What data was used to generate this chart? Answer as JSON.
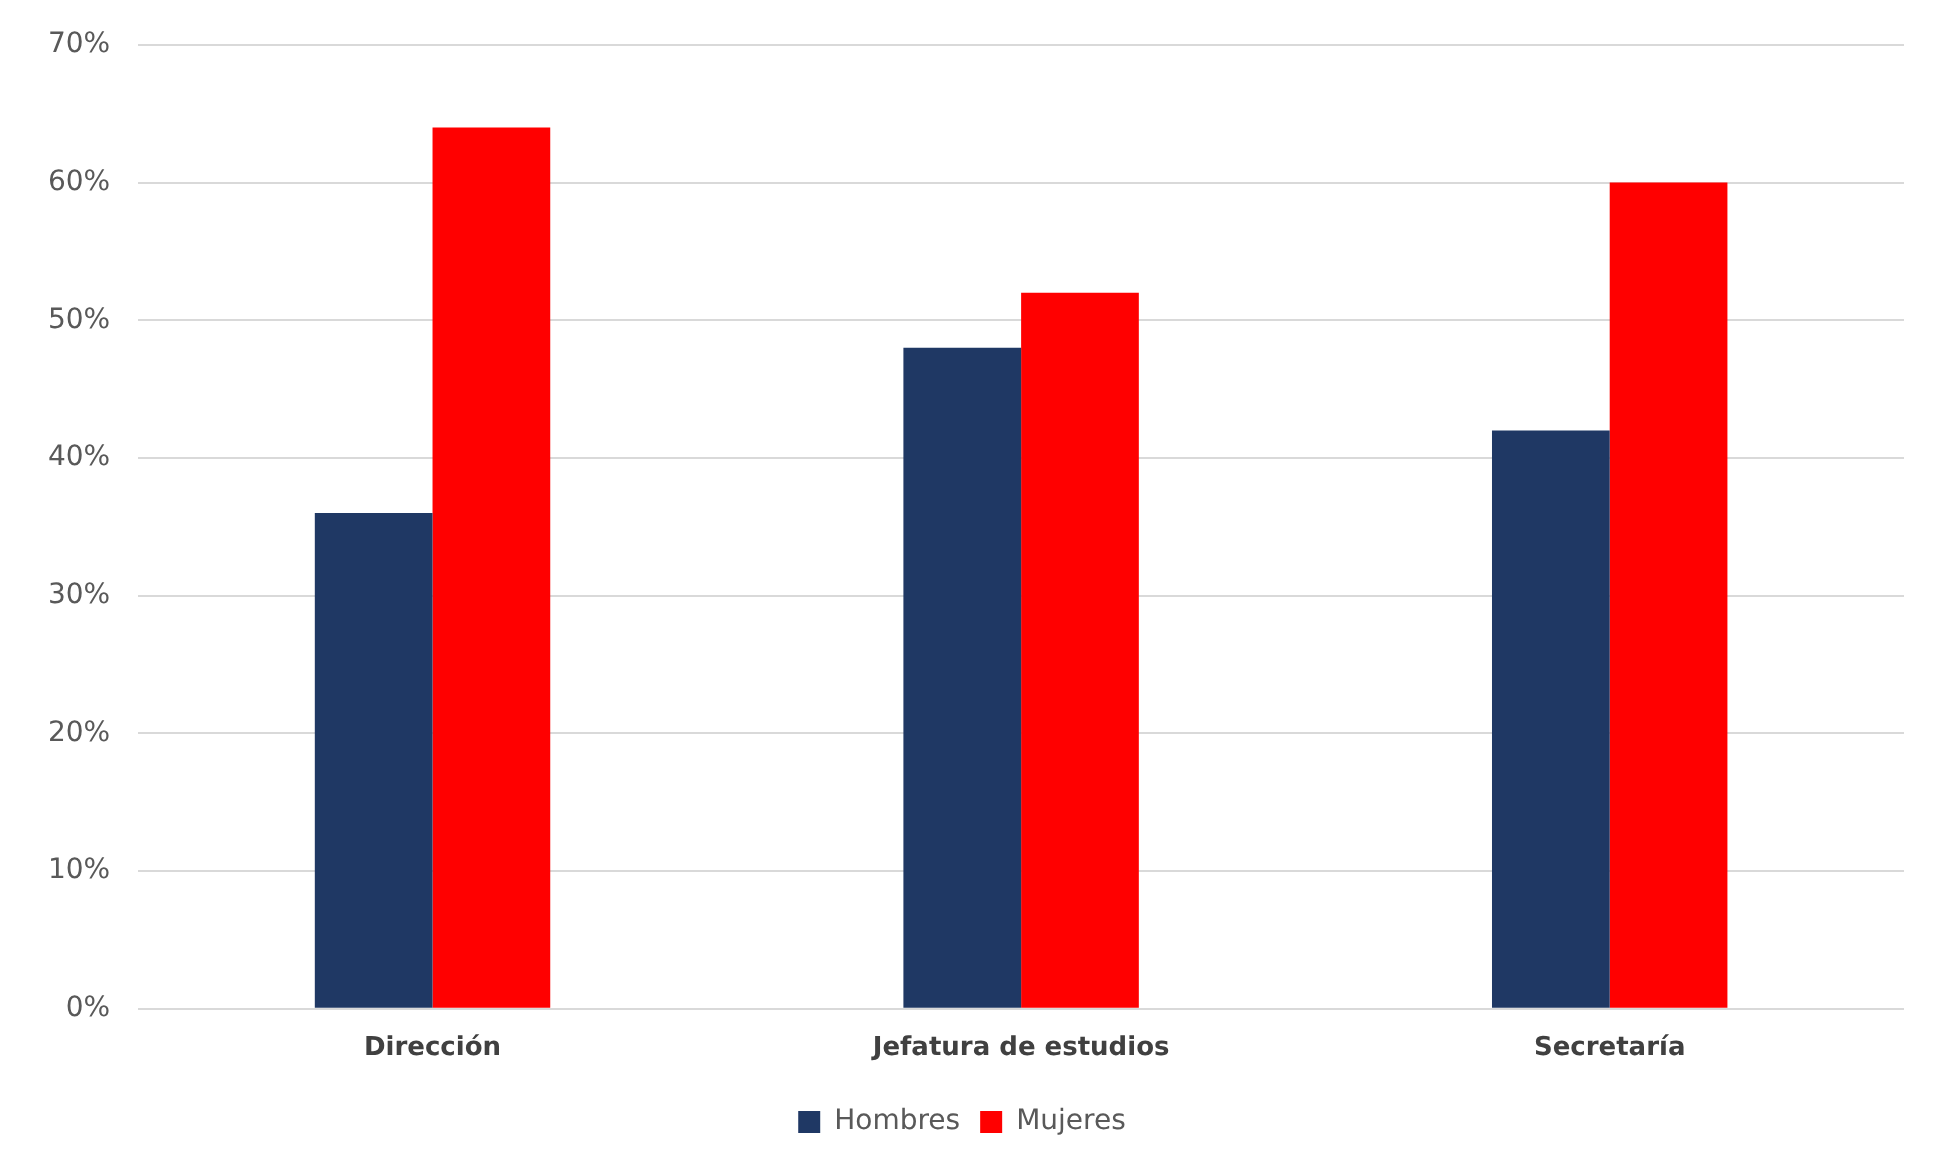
{
  "chart_data": {
    "type": "bar",
    "categories": [
      "Dirección",
      "Jefatura de estudios",
      "Secretaría"
    ],
    "series": [
      {
        "name": "Hombres",
        "color": "#1f3864",
        "values": [
          36,
          48,
          42
        ]
      },
      {
        "name": "Mujeres",
        "color": "#ff0000",
        "values": [
          64,
          52,
          60
        ]
      }
    ],
    "ylim": [
      0,
      70
    ],
    "yticks": [
      {
        "value": 0,
        "label": "0%"
      },
      {
        "value": 10,
        "label": "10%"
      },
      {
        "value": 20,
        "label": "20%"
      },
      {
        "value": 30,
        "label": "30%"
      },
      {
        "value": 40,
        "label": "40%"
      },
      {
        "value": 50,
        "label": "50%"
      },
      {
        "value": 60,
        "label": "60%"
      },
      {
        "value": 70,
        "label": "70%"
      }
    ],
    "grid": "y",
    "legend": "bottom"
  }
}
